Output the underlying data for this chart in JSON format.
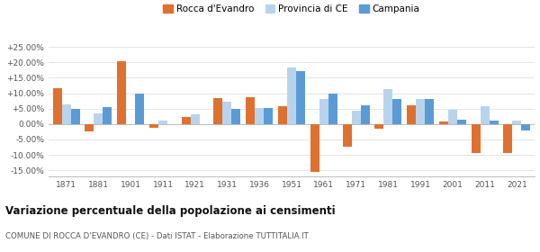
{
  "years": [
    1871,
    1881,
    1901,
    1911,
    1921,
    1931,
    1936,
    1951,
    1961,
    1971,
    1981,
    1991,
    2001,
    2011,
    2021
  ],
  "rocca": [
    11.5,
    -2.5,
    20.3,
    -1.2,
    2.2,
    8.5,
    8.7,
    5.9,
    -15.5,
    -7.5,
    -1.5,
    6.2,
    0.8,
    -9.5,
    -9.5
  ],
  "provincia": [
    6.5,
    3.5,
    0.0,
    1.2,
    3.3,
    7.3,
    5.3,
    18.5,
    8.0,
    4.3,
    11.2,
    8.0,
    4.5,
    5.8,
    1.0
  ],
  "campania": [
    4.8,
    5.5,
    9.8,
    0.0,
    0.0,
    4.8,
    5.2,
    17.3,
    9.8,
    6.1,
    8.2,
    8.2,
    1.3,
    1.1,
    -2.0
  ],
  "color_rocca": "#e07030",
  "color_provincia": "#b8d4ed",
  "color_campania": "#5b9bd5",
  "legend_rocca": "Rocca d'Evandro",
  "legend_provincia": "Provincia di CE",
  "legend_campania": "Campania",
  "title": "Variazione percentuale della popolazione ai censimenti",
  "subtitle": "COMUNE DI ROCCA D'EVANDRO (CE) - Dati ISTAT - Elaborazione TUTTITALIA.IT",
  "ylim": [
    -17,
    28
  ],
  "yticks": [
    -15,
    -10,
    -5,
    0,
    5,
    10,
    15,
    20,
    25
  ],
  "ytick_labels": [
    "-15.00%",
    "-10.00%",
    "-5.00%",
    "0.00%",
    "+5.00%",
    "+10.00%",
    "+15.00%",
    "+20.00%",
    "+25.00%"
  ]
}
